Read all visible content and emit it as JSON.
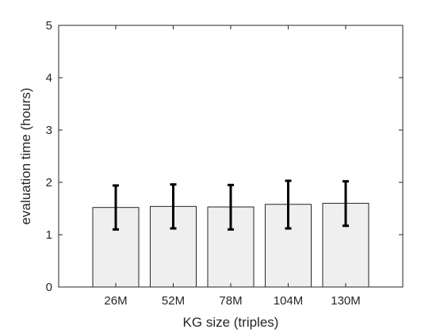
{
  "chart_data": {
    "type": "bar",
    "categories": [
      "26M",
      "52M",
      "78M",
      "104M",
      "130M"
    ],
    "values": [
      1.52,
      1.54,
      1.53,
      1.58,
      1.6
    ],
    "error_low": [
      1.1,
      1.12,
      1.1,
      1.12,
      1.17
    ],
    "error_high": [
      1.94,
      1.96,
      1.95,
      2.03,
      2.02
    ],
    "xlabel": "KG size (triples)",
    "ylabel": "evaluation time (hours)",
    "ylim": [
      0,
      5
    ],
    "yticks": [
      "0",
      "1",
      "2",
      "3",
      "4",
      "5"
    ],
    "grid": false,
    "legend": "none",
    "colors": {
      "bar_fill": "#efefef",
      "bar_stroke": "#262626",
      "error_bar": "#000000",
      "axis": "#262626"
    }
  }
}
